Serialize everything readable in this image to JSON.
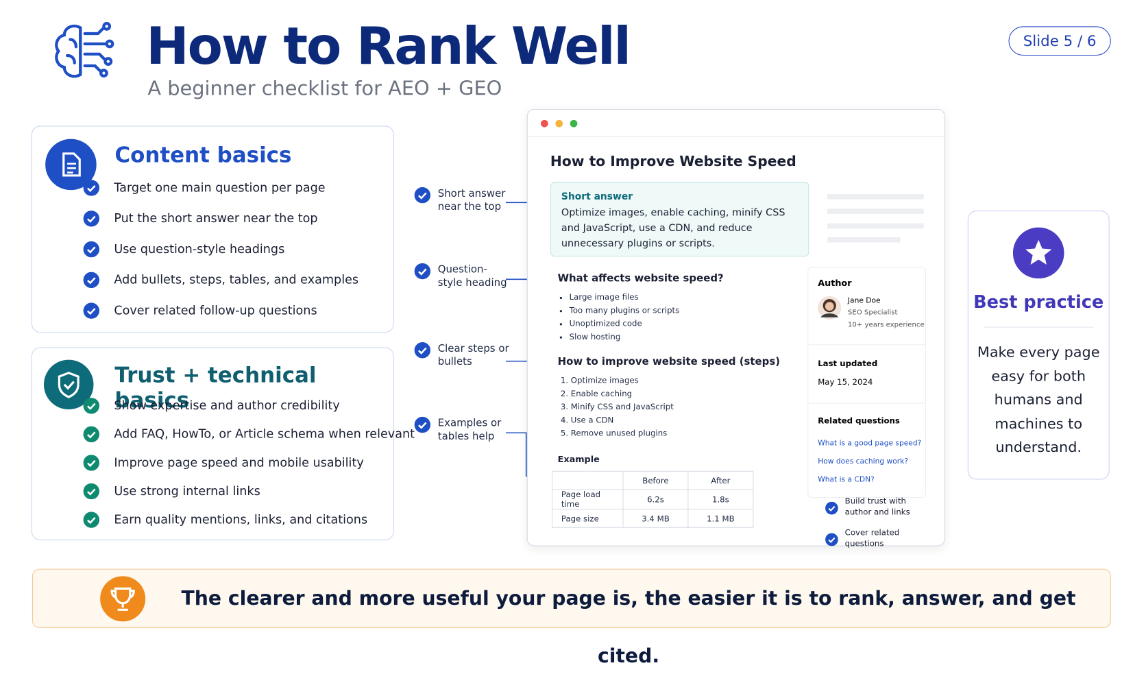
{
  "header": {
    "title": "How to Rank Well",
    "subtitle": "A beginner checklist for AEO + GEO",
    "slide": "Slide 5 / 6"
  },
  "content_basics": {
    "title": "Content basics",
    "items": [
      "Target one main question per page",
      "Put the short answer near the top",
      "Use question-style headings",
      "Add bullets, steps, tables, and examples",
      "Cover related follow-up questions"
    ]
  },
  "trust_basics": {
    "title": "Trust + technical basics",
    "items": [
      "Show expertise and author credibility",
      "Add FAQ, HowTo, or Article schema when relevant",
      "Improve page speed and mobile usability",
      "Use strong internal links",
      "Earn quality mentions, links, and citations"
    ]
  },
  "callouts": [
    "Short answer near the top",
    "Question-style heading",
    "Clear steps or bullets",
    "Examples or tables help"
  ],
  "mockup": {
    "title": "How to Improve Website Speed",
    "short_answer": {
      "label": "Short answer",
      "text": "Optimize images, enable caching, minify CSS and JavaScript, use a CDN, and reduce unnecessary plugins or scripts."
    },
    "section1": {
      "heading": "What affects website speed?",
      "bullets": [
        "Large image files",
        "Too many plugins or scripts",
        "Unoptimized code",
        "Slow hosting"
      ]
    },
    "section2": {
      "heading": "How to improve website speed (steps)",
      "steps": [
        "Optimize images",
        "Enable caching",
        "Minify CSS and JavaScript",
        "Use a CDN",
        "Remove unused plugins"
      ]
    },
    "example": {
      "label": "Example",
      "columns": [
        "Before",
        "After"
      ],
      "rows": [
        [
          "Page load time",
          "6.2s",
          "1.8s"
        ],
        [
          "Page size",
          "3.4 MB",
          "1.1 MB"
        ]
      ]
    },
    "sidebar": {
      "author_label": "Author",
      "name": "Jane Doe",
      "role": "SEO Specialist",
      "experience": "10+ years experience",
      "updated_label": "Last updated",
      "date": "May 15, 2024",
      "related_label": "Related questions",
      "questions": [
        "What is a good page speed?",
        "How does caching work?",
        "What is a CDN?"
      ],
      "notes": [
        "Build trust with author and links",
        "Cover related questions"
      ]
    }
  },
  "best_practice": {
    "title": "Best practice",
    "text": "Make every page easy for both humans and machines to understand."
  },
  "footer": {
    "text": "The clearer and more useful your page is, the easier it is to rank, answer, and get cited."
  }
}
